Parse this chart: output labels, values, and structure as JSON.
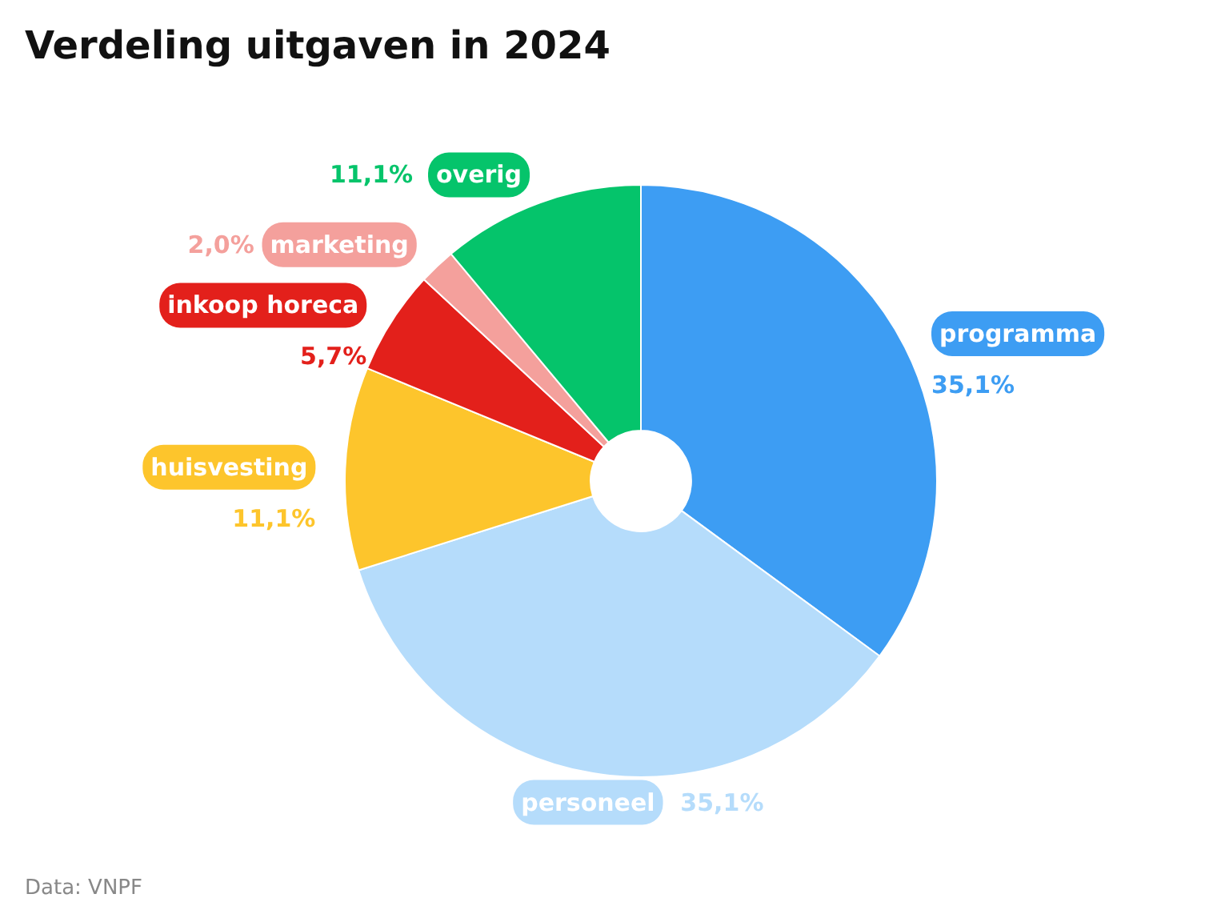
{
  "chart_data": {
    "type": "donut",
    "title": "Verdeling uitgaven in 2024",
    "categories": [
      "programma",
      "personeel",
      "huisvesting",
      "inkoop horeca",
      "marketing",
      "overig"
    ],
    "values": [
      35.1,
      35.1,
      11.1,
      5.7,
      2.0,
      11.1
    ],
    "colors": [
      "#3d9df3",
      "#b5dcfb",
      "#fdc52c",
      "#e3201b",
      "#f4a09c",
      "#05c46b"
    ],
    "value_labels": [
      "35,1%",
      "35,1%",
      "11,1%",
      "5,7%",
      "2,0%",
      "11,1%"
    ],
    "annotations": [
      "Data: VNPF"
    ]
  }
}
